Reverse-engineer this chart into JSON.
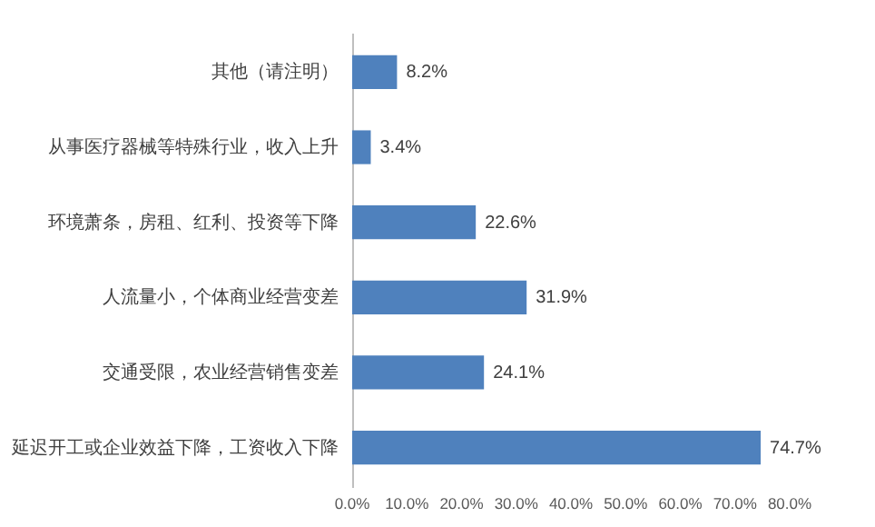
{
  "chart_data": {
    "type": "bar",
    "orientation": "horizontal",
    "categories": [
      "其他（请注明）",
      "从事医疗器械等特殊行业，收入上升",
      "环境萧条，房租、红利、投资等下降",
      "人流量小，个体商业经营变差",
      "交通受限，农业经营销售变差",
      "延迟开工或企业效益下降，工资收入下降"
    ],
    "values": [
      8.2,
      3.4,
      22.6,
      31.9,
      24.1,
      74.7
    ],
    "value_labels": [
      "8.2%",
      "3.4%",
      "22.6%",
      "31.9%",
      "24.1%",
      "74.7%"
    ],
    "color": "#4f81bd",
    "xlim": [
      0,
      80
    ],
    "xticks": [
      {
        "value": 0,
        "label": "0.0%"
      },
      {
        "value": 10,
        "label": "10.0%"
      },
      {
        "value": 20,
        "label": "20.0%"
      },
      {
        "value": 30,
        "label": "30.0%"
      },
      {
        "value": 40,
        "label": "40.0%"
      },
      {
        "value": 50,
        "label": "50.0%"
      },
      {
        "value": 60,
        "label": "60.0%"
      },
      {
        "value": 70,
        "label": "70.0%"
      },
      {
        "value": 80,
        "label": "80.0%"
      }
    ],
    "grid": false
  }
}
